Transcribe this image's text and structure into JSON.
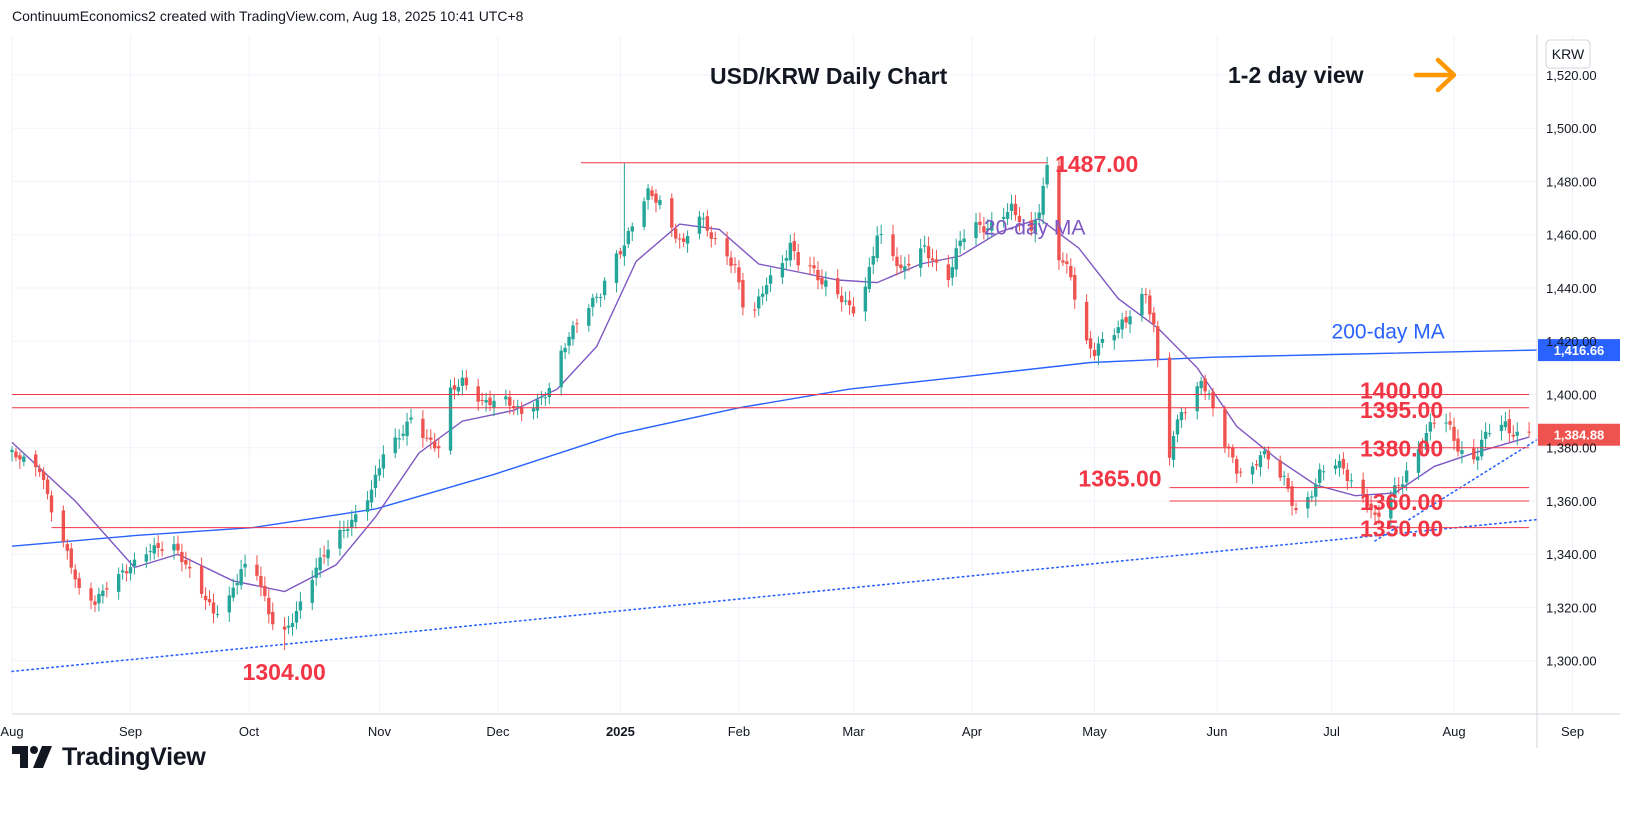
{
  "header": {
    "publisher_line": "ContinuumEconomics2 created with TradingView.com, Aug 18, 2025 10:41 UTC+8"
  },
  "branding": {
    "logo_text": "TradingView"
  },
  "colors": {
    "up": "#26a69a",
    "down": "#ef5350",
    "ma20": "#7e57c2",
    "ma200": "#2962ff",
    "level": "#f23645",
    "trendline": "#2962ff",
    "arrow": "#ff9800",
    "grid": "#f0f3fa",
    "text": "#131722"
  },
  "chart_data": {
    "type": "candlestick",
    "title": "USD/KRW Daily Chart",
    "view_label": "1-2 day view",
    "symbol_currency": "KRW",
    "y_axis": {
      "min": 1280,
      "max": 1535,
      "ticks": [
        1300,
        1320,
        1340,
        1360,
        1380,
        1400,
        1420,
        1440,
        1460,
        1480,
        1500,
        1520
      ],
      "tick_labels": [
        "1,300.00",
        "1,320.00",
        "1,340.00",
        "1,360.00",
        "1,380.00",
        "1,400.00",
        "1,420.00",
        "1,440.00",
        "1,460.00",
        "1,480.00",
        "1,500.00",
        "1,520.00"
      ]
    },
    "x_axis": {
      "start": "2024-08-20",
      "end": "2025-09-10",
      "ticks": [
        {
          "date": "2024-08-20",
          "label": "Aug",
          "bold": false
        },
        {
          "date": "2024-09-19",
          "label": "Sep",
          "bold": false
        },
        {
          "date": "2024-10-19",
          "label": "Oct",
          "bold": false
        },
        {
          "date": "2024-11-21",
          "label": "Nov",
          "bold": false
        },
        {
          "date": "2024-12-21",
          "label": "Dec",
          "bold": false
        },
        {
          "date": "2025-01-21",
          "label": "2025",
          "bold": true
        },
        {
          "date": "2025-02-20",
          "label": "Feb",
          "bold": false
        },
        {
          "date": "2025-03-21",
          "label": "Mar",
          "bold": false
        },
        {
          "date": "2025-04-20",
          "label": "Apr",
          "bold": false
        },
        {
          "date": "2025-05-21",
          "label": "May",
          "bold": false
        },
        {
          "date": "2025-06-21",
          "label": "Jun",
          "bold": false
        },
        {
          "date": "2025-07-20",
          "label": "Jul",
          "bold": false
        },
        {
          "date": "2025-08-20",
          "label": "Aug",
          "bold": false
        },
        {
          "date": "2025-09-19",
          "label": "Sep",
          "bold": false
        }
      ]
    },
    "price_path": [
      [
        "2024-08-20",
        1378
      ],
      [
        "2024-08-27",
        1372
      ],
      [
        "2024-08-30",
        1357
      ],
      [
        "2024-09-04",
        1336
      ],
      [
        "2024-09-06",
        1326
      ],
      [
        "2024-09-10",
        1322
      ],
      [
        "2024-09-14",
        1330
      ],
      [
        "2024-09-18",
        1334
      ],
      [
        "2024-09-24",
        1342
      ],
      [
        "2024-09-30",
        1343
      ],
      [
        "2024-10-03",
        1336
      ],
      [
        "2024-10-07",
        1326
      ],
      [
        "2024-10-10",
        1318
      ],
      [
        "2024-10-13",
        1320
      ],
      [
        "2024-10-17",
        1334
      ],
      [
        "2024-10-20",
        1338
      ],
      [
        "2024-10-24",
        1318
      ],
      [
        "2024-10-27",
        1308
      ],
      [
        "2024-10-31",
        1318
      ],
      [
        "2024-11-05",
        1335
      ],
      [
        "2024-11-09",
        1345
      ],
      [
        "2024-11-14",
        1352
      ],
      [
        "2024-11-19",
        1364
      ],
      [
        "2024-11-22",
        1378
      ],
      [
        "2024-11-26",
        1384
      ],
      [
        "2024-11-29",
        1391
      ],
      [
        "2024-12-03",
        1383
      ],
      [
        "2024-12-06",
        1380
      ],
      [
        "2024-12-08",
        1400
      ],
      [
        "2024-12-12",
        1405
      ],
      [
        "2024-12-17",
        1397
      ],
      [
        "2024-12-23",
        1398
      ],
      [
        "2024-12-27",
        1393
      ],
      [
        "2024-12-31",
        1397
      ],
      [
        "2025-01-03",
        1402
      ],
      [
        "2025-01-05",
        1412
      ],
      [
        "2025-01-08",
        1422
      ],
      [
        "2025-01-12",
        1432
      ],
      [
        "2025-01-16",
        1438
      ],
      [
        "2025-01-19",
        1450
      ],
      [
        "2025-01-22",
        1456
      ],
      [
        "2025-01-25",
        1468
      ],
      [
        "2025-01-28",
        1476
      ],
      [
        "2025-01-31",
        1472
      ],
      [
        "2025-02-03",
        1462
      ],
      [
        "2025-02-06",
        1456
      ],
      [
        "2025-02-09",
        1470
      ],
      [
        "2025-02-12",
        1462
      ],
      [
        "2025-02-15",
        1455
      ],
      [
        "2025-02-19",
        1448
      ],
      [
        "2025-02-21",
        1434
      ],
      [
        "2025-02-24",
        1432
      ],
      [
        "2025-02-27",
        1442
      ],
      [
        "2025-03-02",
        1446
      ],
      [
        "2025-03-05",
        1456
      ],
      [
        "2025-03-07",
        1450
      ],
      [
        "2025-03-10",
        1448
      ],
      [
        "2025-03-13",
        1442
      ],
      [
        "2025-03-16",
        1440
      ],
      [
        "2025-03-19",
        1434
      ],
      [
        "2025-03-21",
        1432
      ],
      [
        "2025-03-24",
        1440
      ],
      [
        "2025-03-27",
        1460
      ],
      [
        "2025-03-30",
        1456
      ],
      [
        "2025-04-02",
        1446
      ],
      [
        "2025-04-05",
        1452
      ],
      [
        "2025-04-08",
        1455
      ],
      [
        "2025-04-11",
        1448
      ],
      [
        "2025-04-14",
        1444
      ],
      [
        "2025-04-17",
        1458
      ],
      [
        "2025-04-20",
        1464
      ],
      [
        "2025-04-24",
        1462
      ],
      [
        "2025-04-27",
        1467
      ],
      [
        "2025-04-30",
        1470
      ],
      [
        "2025-05-02",
        1466
      ],
      [
        "2025-05-05",
        1460
      ],
      [
        "2025-05-07",
        1470
      ],
      [
        "2025-05-09",
        1485
      ],
      [
        "2025-05-12",
        1452
      ],
      [
        "2025-05-15",
        1445
      ],
      [
        "2025-05-18",
        1420
      ],
      [
        "2025-05-21",
        1416
      ],
      [
        "2025-05-24",
        1422
      ],
      [
        "2025-05-27",
        1425
      ],
      [
        "2025-05-30",
        1430
      ],
      [
        "2025-06-03",
        1438
      ],
      [
        "2025-06-05",
        1425
      ],
      [
        "2025-06-07",
        1400
      ],
      [
        "2025-06-09",
        1378
      ],
      [
        "2025-06-12",
        1395
      ],
      [
        "2025-06-14",
        1392
      ],
      [
        "2025-06-17",
        1406
      ],
      [
        "2025-06-20",
        1395
      ],
      [
        "2025-06-23",
        1382
      ],
      [
        "2025-06-26",
        1372
      ],
      [
        "2025-06-29",
        1368
      ],
      [
        "2025-07-02",
        1378
      ],
      [
        "2025-07-05",
        1375
      ],
      [
        "2025-07-08",
        1368
      ],
      [
        "2025-07-11",
        1356
      ],
      [
        "2025-07-14",
        1360
      ],
      [
        "2025-07-17",
        1370
      ],
      [
        "2025-07-20",
        1376
      ],
      [
        "2025-07-23",
        1372
      ],
      [
        "2025-07-26",
        1364
      ],
      [
        "2025-07-29",
        1360
      ],
      [
        "2025-07-31",
        1353
      ],
      [
        "2025-08-03",
        1360
      ],
      [
        "2025-08-06",
        1366
      ],
      [
        "2025-08-09",
        1372
      ],
      [
        "2025-08-12",
        1382
      ],
      [
        "2025-08-15",
        1391
      ],
      [
        "2025-08-18",
        1390
      ],
      [
        "2025-08-21",
        1380
      ],
      [
        "2025-08-24",
        1372
      ],
      [
        "2025-08-27",
        1382
      ],
      [
        "2025-08-30",
        1390
      ],
      [
        "2025-09-02",
        1388
      ],
      [
        "2025-09-05",
        1384
      ],
      [
        "2025-09-08",
        1386
      ]
    ],
    "ma20_path": [
      [
        "2024-08-20",
        1382
      ],
      [
        "2024-09-05",
        1360
      ],
      [
        "2024-09-20",
        1335
      ],
      [
        "2024-10-01",
        1340
      ],
      [
        "2024-10-15",
        1330
      ],
      [
        "2024-10-28",
        1326
      ],
      [
        "2024-11-10",
        1336
      ],
      [
        "2024-11-20",
        1354
      ],
      [
        "2024-12-01",
        1378
      ],
      [
        "2024-12-12",
        1390
      ],
      [
        "2024-12-25",
        1394
      ],
      [
        "2025-01-05",
        1402
      ],
      [
        "2025-01-15",
        1418
      ],
      [
        "2025-01-25",
        1450
      ],
      [
        "2025-02-05",
        1464
      ],
      [
        "2025-02-15",
        1462
      ],
      [
        "2025-02-25",
        1449
      ],
      [
        "2025-03-07",
        1446
      ],
      [
        "2025-03-17",
        1443
      ],
      [
        "2025-03-27",
        1442
      ],
      [
        "2025-04-07",
        1449
      ],
      [
        "2025-04-17",
        1452
      ],
      [
        "2025-04-27",
        1461
      ],
      [
        "2025-05-07",
        1466
      ],
      [
        "2025-05-17",
        1455
      ],
      [
        "2025-05-27",
        1436
      ],
      [
        "2025-06-06",
        1425
      ],
      [
        "2025-06-16",
        1410
      ],
      [
        "2025-06-26",
        1388
      ],
      [
        "2025-07-06",
        1376
      ],
      [
        "2025-07-16",
        1366
      ],
      [
        "2025-07-26",
        1362
      ],
      [
        "2025-08-05",
        1363
      ],
      [
        "2025-08-15",
        1373
      ],
      [
        "2025-08-25",
        1378
      ],
      [
        "2025-09-08",
        1384
      ]
    ],
    "ma200_path": [
      [
        "2024-08-20",
        1343
      ],
      [
        "2024-09-20",
        1347
      ],
      [
        "2024-10-20",
        1350
      ],
      [
        "2024-11-20",
        1357
      ],
      [
        "2024-12-20",
        1370
      ],
      [
        "2025-01-20",
        1385
      ],
      [
        "2025-02-20",
        1395
      ],
      [
        "2025-03-20",
        1402
      ],
      [
        "2025-04-20",
        1407
      ],
      [
        "2025-05-20",
        1412
      ],
      [
        "2025-06-20",
        1414
      ],
      [
        "2025-07-20",
        1415
      ],
      [
        "2025-09-10",
        1416.66
      ]
    ],
    "extremes": {
      "high": {
        "date": "2025-01-22",
        "value": 1487
      },
      "low": {
        "date": "2024-10-28",
        "value": 1304
      }
    },
    "levels": [
      {
        "value": 1487,
        "label": "1487.00",
        "start": "2025-01-11",
        "end": "2025-05-09"
      },
      {
        "value": 1400,
        "label": "1400.00",
        "start": "2024-08-20",
        "end": "2025-09-08"
      },
      {
        "value": 1395,
        "label": "1395.00",
        "start": "2024-08-20",
        "end": "2025-09-08"
      },
      {
        "value": 1380,
        "label": "1380.00",
        "start": "2025-06-09",
        "end": "2025-09-08"
      },
      {
        "value": 1365,
        "label": "1365.00",
        "start": "2025-06-09",
        "end": "2025-09-08"
      },
      {
        "value": 1360,
        "label": "1360.00",
        "start": "2025-06-09",
        "end": "2025-09-08"
      },
      {
        "value": 1350,
        "label": "1350.00",
        "start": "2024-08-30",
        "end": "2025-09-08"
      }
    ],
    "low_label": "1304.00",
    "trendlines": [
      {
        "start": [
          "2024-08-20",
          1296
        ],
        "end": [
          "2025-09-10",
          1353
        ]
      },
      {
        "start": [
          "2025-07-31",
          1345
        ],
        "end": [
          "2025-09-10",
          1383
        ]
      }
    ],
    "ma_labels": {
      "ma20": "20-day MA",
      "ma200": "200-day MA"
    },
    "last_values": {
      "ma200": "1,416.66",
      "close": "1,384.88"
    }
  }
}
